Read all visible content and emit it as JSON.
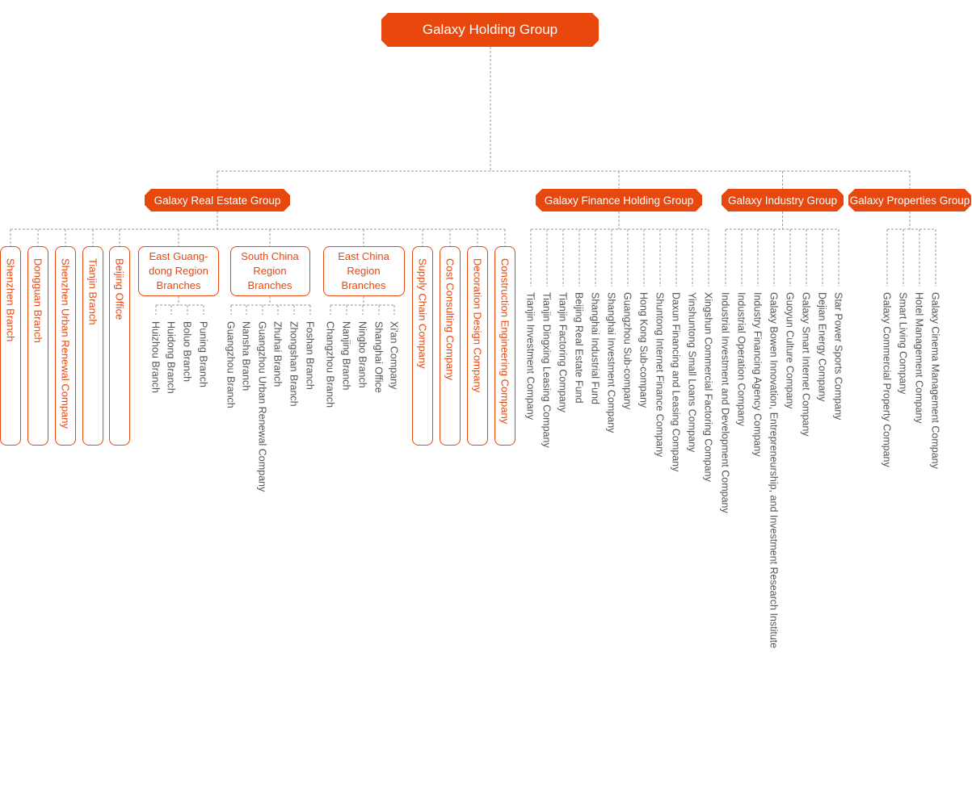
{
  "root": "Galaxy Holding Group",
  "groups": [
    {
      "name": "Galaxy Real Estate Group",
      "children": [
        "Shenzhen Branch",
        "Dongguan Branch",
        "Shenzhen Urban Renewal Company",
        "Tianjin Branch",
        "Beijing Office",
        {
          "name": "East Guang-dong Region Branches",
          "children": [
            "Huizhou Branch",
            "Huidong Branch",
            "Boluo Branch",
            "Puning Branch"
          ]
        },
        {
          "name": "South China Region Branches",
          "children": [
            "Guangzhou Branch",
            "Nansha Branch",
            "Guangzhou Urban Renewal Company",
            "Zhuhai Branch",
            "Zhongshan Branch",
            "Foshan Branch"
          ]
        },
        {
          "name": "East China Region Branches",
          "children": [
            "Changzhou Branch",
            "Nanjing Branch",
            "Ningbo Branch",
            "Shanghai Office",
            "Xi'an Company"
          ]
        },
        "Supply Chain Company",
        "Cost Consulting Company",
        "Decoration Design Company",
        "Construction Engineering Company"
      ]
    },
    {
      "name": "Galaxy Finance Holding Group",
      "children": [
        "Tianjin Investment Company",
        "Tianjin Dingxing Leasing Company",
        "Tianjin Factoring Company",
        "Beijing Real Estate Fund",
        "Shanghai Industrial Fund",
        "Shanghai Investment Company",
        "Guangzhou Sub-company",
        "Hong Kong Sub-company",
        "Shuntong Internet Finance Company",
        "Daxun Financing and Leasing Company",
        "Yinshuntong Small Loans Company",
        "Xingshun Commercial Factoring Company"
      ]
    },
    {
      "name": "Galaxy Industry Group",
      "children": [
        "Industrial Investment and Development Company",
        "Industrial Operation Company",
        "Industry Financing Agency Company",
        "Galaxy Bowen Innovation, Entrepreneurship, and Investment Research Institute",
        "Guoyun Culture Company",
        "Galaxy Smart Internet Company",
        "Dejian Energy Company",
        "Star Power Sports Company"
      ]
    },
    {
      "name": "Galaxy Properties Group",
      "children": [
        "Galaxy Commercial Property Company",
        "Smart Living Company",
        "Hotel Management Company",
        "Galaxy Cinema Management Company"
      ]
    }
  ]
}
